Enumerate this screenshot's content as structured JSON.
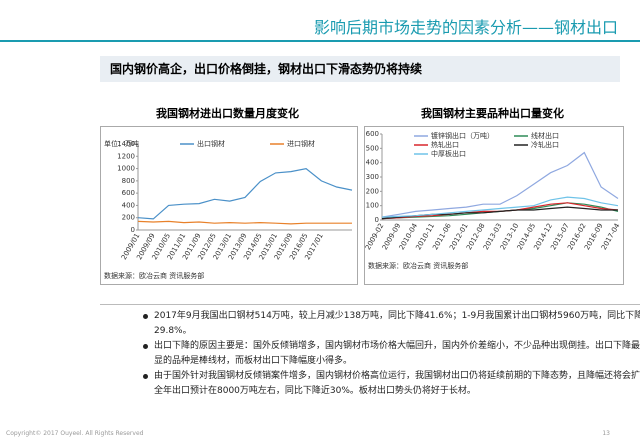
{
  "title": "影响后期市场走势的因素分析——钢材出口",
  "subtitle": "国内钢价高企，出口价格倒挂，钢材出口下滑态势仍将持续",
  "chart_data": [
    {
      "type": "line",
      "title": "我国钢材进出口数量月度变化",
      "unit_label": "单位：万吨",
      "source": "数据来源：欧冶云商 资讯服务部",
      "categories": [
        "2009/01",
        "2009/09",
        "2010/05",
        "2011/01",
        "2011/09",
        "2012/05",
        "2013/01",
        "2013/09",
        "2014/05",
        "2015/01",
        "2015/09",
        "2016/05",
        "2017/01",
        null,
        null
      ],
      "ylim": [
        0,
        1400
      ],
      "yticks": [
        0,
        200,
        400,
        600,
        800,
        1000,
        1200,
        1400
      ],
      "series": [
        {
          "name": "出口钢材",
          "color": "#4a90c8",
          "values": [
            200,
            180,
            400,
            420,
            430,
            500,
            470,
            530,
            790,
            930,
            950,
            1000,
            800,
            700,
            650
          ]
        },
        {
          "name": "进口钢材",
          "color": "#e8812a",
          "values": [
            140,
            130,
            140,
            120,
            130,
            110,
            120,
            110,
            120,
            110,
            100,
            110,
            110,
            110,
            110
          ]
        }
      ]
    },
    {
      "type": "line",
      "title": "我国钢材主要品种出口量变化",
      "source": "数据来源：欧冶云商 资讯服务部",
      "categories": [
        "2009-02",
        "2009-09",
        "2010-04",
        "2010-11",
        "2011-06",
        "2012-01",
        "2012-08",
        "2013-03",
        "2013-10",
        "2014-05",
        "2014-12",
        "2015-07",
        "2016-02",
        "2016-09",
        "2017-04"
      ],
      "ylim": [
        0,
        600
      ],
      "yticks": [
        0,
        100,
        200,
        300,
        400,
        500,
        600
      ],
      "series": [
        {
          "name": "镀锌钢出口（万吨）",
          "color": "#8fa8e0",
          "values": [
            20,
            40,
            60,
            70,
            80,
            90,
            110,
            110,
            170,
            250,
            330,
            380,
            470,
            230,
            150
          ]
        },
        {
          "name": "线材出口",
          "color": "#2e8b57",
          "values": [
            10,
            15,
            20,
            25,
            30,
            40,
            50,
            60,
            70,
            80,
            100,
            120,
            110,
            90,
            60
          ]
        },
        {
          "name": "热轧出口",
          "color": "#d9262c",
          "values": [
            10,
            15,
            25,
            30,
            40,
            50,
            60,
            60,
            70,
            90,
            110,
            120,
            100,
            80,
            70
          ]
        },
        {
          "name": "冷轧出口",
          "color": "#222222",
          "values": [
            10,
            20,
            30,
            40,
            40,
            50,
            50,
            60,
            70,
            70,
            80,
            90,
            80,
            70,
            70
          ]
        },
        {
          "name": "中厚板出口",
          "color": "#6fc3e8",
          "values": [
            20,
            25,
            30,
            40,
            50,
            60,
            70,
            80,
            90,
            100,
            140,
            160,
            150,
            120,
            100
          ]
        }
      ]
    }
  ],
  "bullets": [
    "2017年9月我国出口钢材514万吨，较上月减少138万吨，同比下降41.6%；1-9月我国累计出口钢材5960万吨，同比下降29.8%。",
    "出口下降的原因主要是：国外反倾销增多，国内钢材市场价格大幅回升，国内外价差缩小，不少品种出现倒挂。出口下降最为明显的品种是棒线材，而板材出口下降幅度小得多。",
    "由于国外针对我国钢材反倾销案件增多，国内钢材价格高位运行，我国钢材出口仍将延续前期的下降态势，且降幅还将会扩大，全年出口预计在8000万吨左右，同比下降近30%。板材出口势头仍将好于长材。"
  ],
  "copyright": "Copyright© 2017 Ouyeel. All Rights Reserved",
  "page_number": "13"
}
